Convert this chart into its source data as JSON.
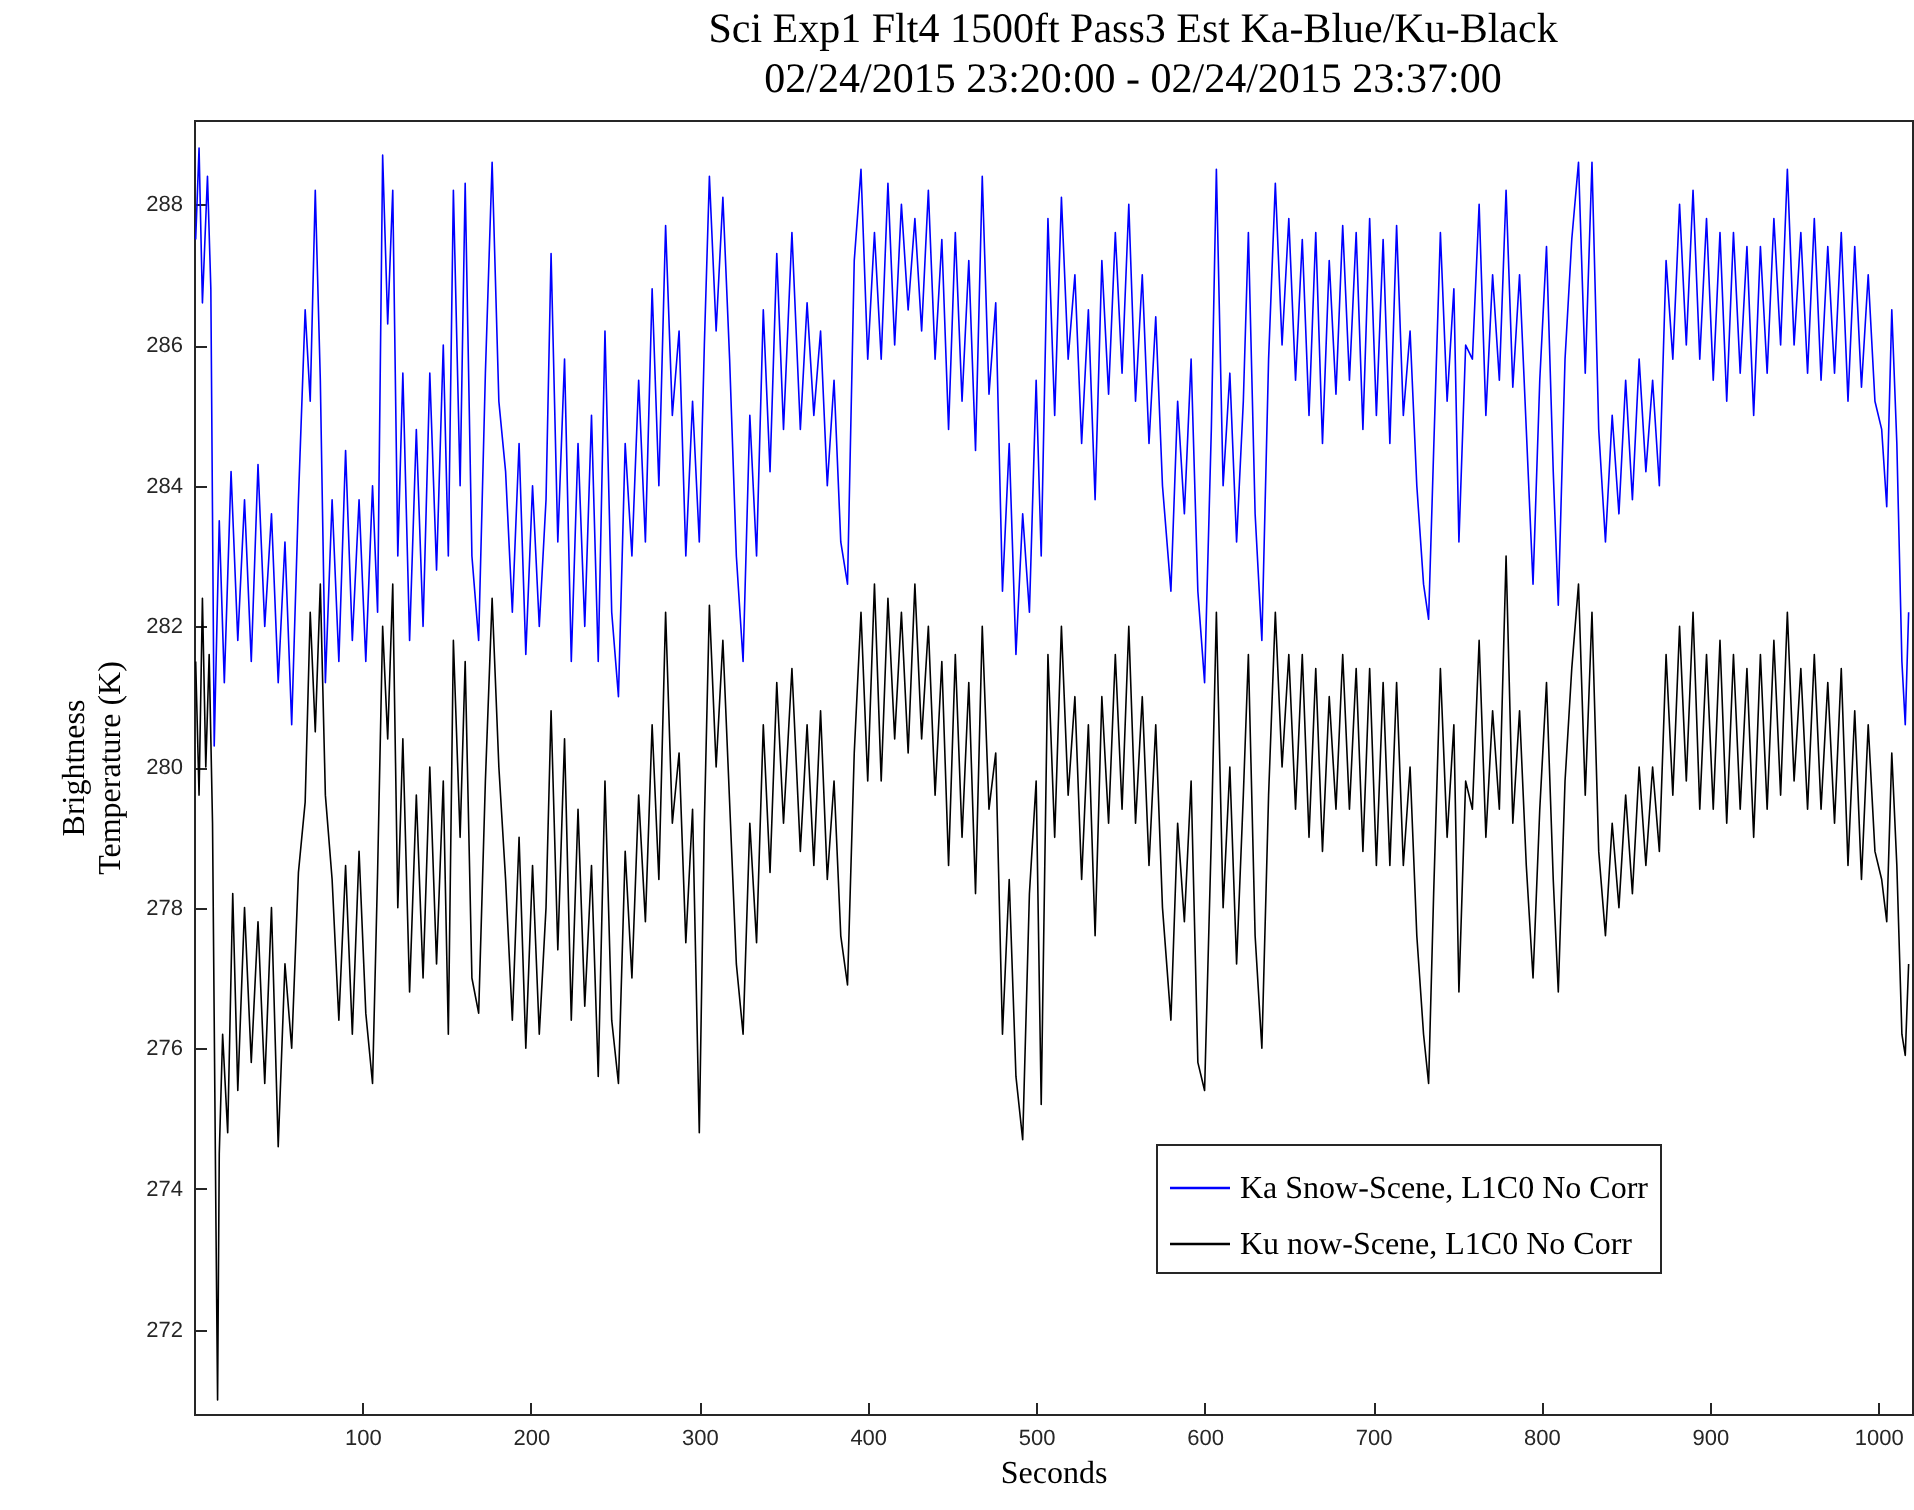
{
  "chart_data": {
    "type": "line",
    "title": "Sci Exp1 Flt4 1500ft Pass3 Est Ka-Blue/Ku-Black",
    "subtitle": "02/24/2015 23:20:00 - 02/24/2015 23:37:00",
    "xlabel": "Seconds",
    "ylabel": "Brightness Temperature (K)",
    "xlim": [
      0,
      1020
    ],
    "xticks": [
      100,
      200,
      300,
      400,
      500,
      600,
      700,
      800,
      900,
      1000
    ],
    "ylim": [
      270.8,
      289.2
    ],
    "yticks": [
      272,
      274,
      276,
      278,
      280,
      282,
      284,
      286,
      288
    ],
    "grid": false,
    "legend": "bottom right",
    "marker": "none",
    "line_style": "solid",
    "series": [
      {
        "name": "Ka Snow-Scene, L1C0 No Corr",
        "color": "#0000ff",
        "x": [
          1,
          3,
          5,
          8,
          10,
          12,
          15,
          18,
          22,
          26,
          30,
          34,
          38,
          42,
          46,
          50,
          54,
          58,
          62,
          66,
          69,
          72,
          75,
          78,
          82,
          86,
          90,
          94,
          98,
          102,
          106,
          109,
          112,
          115,
          118,
          121,
          124,
          128,
          132,
          136,
          140,
          144,
          148,
          151,
          154,
          158,
          161,
          165,
          169,
          173,
          177,
          181,
          185,
          189,
          193,
          197,
          201,
          205,
          209,
          212,
          216,
          220,
          224,
          228,
          232,
          236,
          240,
          244,
          248,
          252,
          256,
          260,
          264,
          268,
          272,
          276,
          280,
          284,
          288,
          292,
          296,
          300,
          303,
          306,
          310,
          314,
          318,
          322,
          326,
          330,
          334,
          338,
          342,
          346,
          350,
          355,
          360,
          364,
          368,
          372,
          376,
          380,
          384,
          388,
          392,
          396,
          400,
          404,
          408,
          412,
          416,
          420,
          424,
          428,
          432,
          436,
          440,
          444,
          448,
          452,
          456,
          460,
          464,
          468,
          472,
          476,
          480,
          484,
          488,
          492,
          496,
          500,
          503,
          507,
          511,
          515,
          519,
          523,
          527,
          531,
          535,
          539,
          543,
          547,
          551,
          555,
          559,
          563,
          567,
          571,
          575,
          580,
          584,
          588,
          592,
          596,
          600,
          604,
          607,
          611,
          615,
          619,
          623,
          626,
          630,
          634,
          638,
          642,
          646,
          650,
          654,
          658,
          662,
          666,
          670,
          674,
          678,
          682,
          686,
          690,
          694,
          698,
          702,
          706,
          710,
          714,
          718,
          722,
          726,
          730,
          733,
          736,
          740,
          744,
          748,
          751,
          755,
          759,
          763,
          767,
          771,
          775,
          779,
          783,
          787,
          791,
          795,
          799,
          803,
          807,
          810,
          814,
          818,
          822,
          826,
          830,
          834,
          838,
          842,
          846,
          850,
          854,
          858,
          862,
          866,
          870,
          874,
          878,
          882,
          886,
          890,
          894,
          898,
          902,
          906,
          910,
          914,
          918,
          922,
          926,
          930,
          934,
          938,
          942,
          946,
          950,
          954,
          958,
          962,
          966,
          970,
          974,
          978,
          982,
          986,
          990,
          994,
          998,
          1002,
          1005,
          1008,
          1011,
          1014,
          1016,
          1018
        ],
        "values": [
          287.5,
          288.8,
          286.6,
          288.4,
          286.8,
          280.3,
          283.5,
          281.2,
          284.2,
          281.8,
          283.8,
          281.5,
          284.3,
          282,
          283.6,
          281.2,
          283.2,
          280.6,
          283.8,
          286.5,
          285.2,
          288.2,
          285.5,
          281.2,
          283.8,
          281.5,
          284.5,
          281.8,
          283.8,
          281.5,
          284,
          282.2,
          288.7,
          286.3,
          288.2,
          283,
          285.6,
          281.8,
          284.8,
          282,
          285.6,
          282.8,
          286,
          283,
          288.2,
          284,
          288.3,
          283,
          281.8,
          285.6,
          288.6,
          285.2,
          284.2,
          282.2,
          284.6,
          281.6,
          284,
          282,
          283.8,
          287.3,
          283.2,
          285.8,
          281.5,
          284.6,
          282,
          285,
          281.5,
          286.2,
          282.2,
          281,
          284.6,
          283,
          285.5,
          283.2,
          286.8,
          284,
          287.7,
          285,
          286.2,
          283,
          285.2,
          283.2,
          286,
          288.4,
          286.2,
          288.1,
          285.8,
          283,
          281.5,
          285,
          283,
          286.5,
          284.2,
          287.3,
          284.8,
          287.6,
          284.8,
          286.6,
          285,
          286.2,
          284,
          285.5,
          283.2,
          282.6,
          287.2,
          288.5,
          285.8,
          287.6,
          285.8,
          288.3,
          286,
          288,
          286.5,
          287.8,
          286.2,
          288.2,
          285.8,
          287.5,
          284.8,
          287.6,
          285.2,
          287.2,
          284.5,
          288.4,
          285.3,
          286.6,
          282.5,
          284.6,
          281.6,
          283.6,
          282.2,
          285.5,
          283,
          287.8,
          285,
          288.1,
          285.8,
          287,
          284.6,
          286.5,
          283.8,
          287.2,
          285.3,
          287.6,
          285.6,
          288,
          285.2,
          287,
          284.6,
          286.4,
          284,
          282.5,
          285.2,
          283.6,
          285.8,
          282.5,
          281.2,
          284.8,
          288.5,
          284,
          285.6,
          283.2,
          285.2,
          287.6,
          283.6,
          281.8,
          285.8,
          288.3,
          286,
          287.8,
          285.5,
          287.5,
          285,
          287.6,
          284.6,
          287.2,
          285.3,
          287.7,
          285.5,
          287.6,
          284.8,
          287.8,
          285,
          287.5,
          284.6,
          287.7,
          285,
          286.2,
          284,
          282.6,
          282.1,
          284.5,
          287.6,
          285.2,
          286.8,
          283.2,
          286,
          285.8,
          288,
          285,
          287,
          285.5,
          288.2,
          285.4,
          287,
          284.8,
          282.6,
          285.5,
          287.4,
          284.2,
          282.3,
          285.8,
          287.5,
          288.6,
          285.6,
          288.6,
          284.8,
          283.2,
          285,
          283.6,
          285.5,
          283.8,
          285.8,
          284.2,
          285.5,
          284,
          287.2,
          285.8,
          288,
          286,
          288.2,
          285.8,
          287.8,
          285.5,
          287.6,
          285.2,
          287.6,
          285.6,
          287.4,
          285,
          287.4,
          285.6,
          287.8,
          286,
          288.5,
          286,
          287.6,
          285.6,
          287.8,
          285.5,
          287.4,
          285.6,
          287.6,
          285.2,
          287.4,
          285.4,
          287,
          285.2,
          284.8,
          283.7,
          286.5,
          284.6,
          281.5,
          280.6,
          282.2
        ]
      },
      {
        "name": "Ku now-Scene, L1C0 No Corr",
        "color": "#000000",
        "x": [
          1,
          3,
          5,
          7,
          9,
          11,
          13,
          14,
          15,
          17,
          20,
          23,
          26,
          30,
          34,
          38,
          42,
          46,
          50,
          54,
          58,
          62,
          66,
          69,
          72,
          75,
          78,
          82,
          86,
          90,
          94,
          98,
          102,
          106,
          109,
          112,
          115,
          118,
          121,
          124,
          128,
          132,
          136,
          140,
          144,
          148,
          151,
          154,
          158,
          161,
          165,
          169,
          173,
          177,
          181,
          185,
          189,
          193,
          197,
          201,
          205,
          209,
          212,
          216,
          220,
          224,
          228,
          232,
          236,
          240,
          244,
          248,
          252,
          256,
          260,
          264,
          268,
          272,
          276,
          280,
          284,
          288,
          292,
          296,
          300,
          303,
          306,
          310,
          314,
          318,
          322,
          326,
          330,
          334,
          338,
          342,
          346,
          350,
          355,
          360,
          364,
          368,
          372,
          376,
          380,
          384,
          388,
          392,
          396,
          400,
          404,
          408,
          412,
          416,
          420,
          424,
          428,
          432,
          436,
          440,
          444,
          448,
          452,
          456,
          460,
          464,
          468,
          472,
          476,
          480,
          484,
          488,
          492,
          496,
          500,
          503,
          507,
          511,
          515,
          519,
          523,
          527,
          531,
          535,
          539,
          543,
          547,
          551,
          555,
          559,
          563,
          567,
          571,
          575,
          580,
          584,
          588,
          592,
          596,
          600,
          604,
          607,
          611,
          615,
          619,
          623,
          626,
          630,
          634,
          638,
          642,
          646,
          650,
          654,
          658,
          662,
          666,
          670,
          674,
          678,
          682,
          686,
          690,
          694,
          698,
          702,
          706,
          710,
          714,
          718,
          722,
          726,
          730,
          733,
          736,
          740,
          744,
          748,
          751,
          755,
          759,
          763,
          767,
          771,
          775,
          779,
          783,
          787,
          791,
          795,
          799,
          803,
          807,
          810,
          814,
          818,
          822,
          826,
          830,
          834,
          838,
          842,
          846,
          850,
          854,
          858,
          862,
          866,
          870,
          874,
          878,
          882,
          886,
          890,
          894,
          898,
          902,
          906,
          910,
          914,
          918,
          922,
          926,
          930,
          934,
          938,
          942,
          946,
          950,
          954,
          958,
          962,
          966,
          970,
          974,
          978,
          982,
          986,
          990,
          994,
          998,
          1002,
          1005,
          1008,
          1011,
          1014,
          1016,
          1018
        ],
        "values": [
          281.5,
          279.6,
          282.4,
          280,
          281.6,
          279.2,
          273.6,
          271,
          274.5,
          276.2,
          274.8,
          278.2,
          275.4,
          278,
          275.8,
          277.8,
          275.5,
          278,
          274.6,
          277.2,
          276,
          278.5,
          279.5,
          282.2,
          280.5,
          282.6,
          279.6,
          278.4,
          276.4,
          278.6,
          276.2,
          278.8,
          276.5,
          275.5,
          278.5,
          282,
          280.4,
          282.6,
          278,
          280.4,
          276.8,
          279.6,
          277,
          280,
          277.2,
          279.8,
          276.2,
          281.8,
          279,
          281.5,
          277,
          276.5,
          279.8,
          282.4,
          280,
          278.4,
          276.4,
          279,
          276,
          278.6,
          276.2,
          278,
          280.8,
          277.4,
          280.4,
          276.4,
          279.4,
          276.6,
          278.6,
          275.6,
          279.8,
          276.4,
          275.5,
          278.8,
          277,
          279.6,
          277.8,
          280.6,
          278.4,
          282.2,
          279.2,
          280.2,
          277.5,
          279.4,
          274.8,
          279.2,
          282.3,
          280,
          281.8,
          279.5,
          277.2,
          276.2,
          279.2,
          277.5,
          280.6,
          278.5,
          281.2,
          279.2,
          281.4,
          278.8,
          280.6,
          278.6,
          280.8,
          278.4,
          279.8,
          277.6,
          276.9,
          280.2,
          282.2,
          279.8,
          282.6,
          279.8,
          282.4,
          280.4,
          282.2,
          280.2,
          282.6,
          280.4,
          282,
          279.6,
          281.5,
          278.6,
          281.6,
          279,
          281.2,
          278.2,
          282,
          279.4,
          280.2,
          276.2,
          278.4,
          275.6,
          274.7,
          278.2,
          279.8,
          275.2,
          281.6,
          279,
          282,
          279.6,
          281,
          278.4,
          280.6,
          277.6,
          281,
          279.2,
          281.6,
          279.4,
          282,
          279.2,
          281,
          278.6,
          280.6,
          278,
          276.4,
          279.2,
          277.8,
          279.8,
          275.8,
          275.4,
          279,
          282.2,
          278,
          280,
          277.2,
          279.6,
          281.6,
          277.6,
          276,
          279.6,
          282.2,
          280,
          281.6,
          279.4,
          281.6,
          279,
          281.4,
          278.8,
          281,
          279.4,
          281.6,
          279.4,
          281.4,
          278.8,
          281.4,
          278.6,
          281.2,
          278.6,
          281.2,
          278.6,
          280,
          277.6,
          276.2,
          275.5,
          278.2,
          281.4,
          279,
          280.6,
          276.8,
          279.8,
          279.4,
          281.8,
          279,
          280.8,
          279.4,
          283,
          279.2,
          280.8,
          278.6,
          277,
          279.4,
          281.2,
          278.4,
          276.8,
          279.8,
          281.4,
          282.6,
          279.6,
          282.2,
          278.8,
          277.6,
          279.2,
          278,
          279.6,
          278.2,
          280,
          278.6,
          280,
          278.8,
          281.6,
          279.6,
          282,
          279.8,
          282.2,
          279.4,
          281.6,
          279.4,
          281.8,
          279.2,
          281.6,
          279.4,
          281.4,
          279,
          281.6,
          279.4,
          281.8,
          279.6,
          282.2,
          279.8,
          281.4,
          279.4,
          281.6,
          279.4,
          281.2,
          279.2,
          281.4,
          278.6,
          280.8,
          278.4,
          280.6,
          278.8,
          278.4,
          277.8,
          280.2,
          278.6,
          276.2,
          275.9,
          277.2
        ]
      }
    ]
  }
}
